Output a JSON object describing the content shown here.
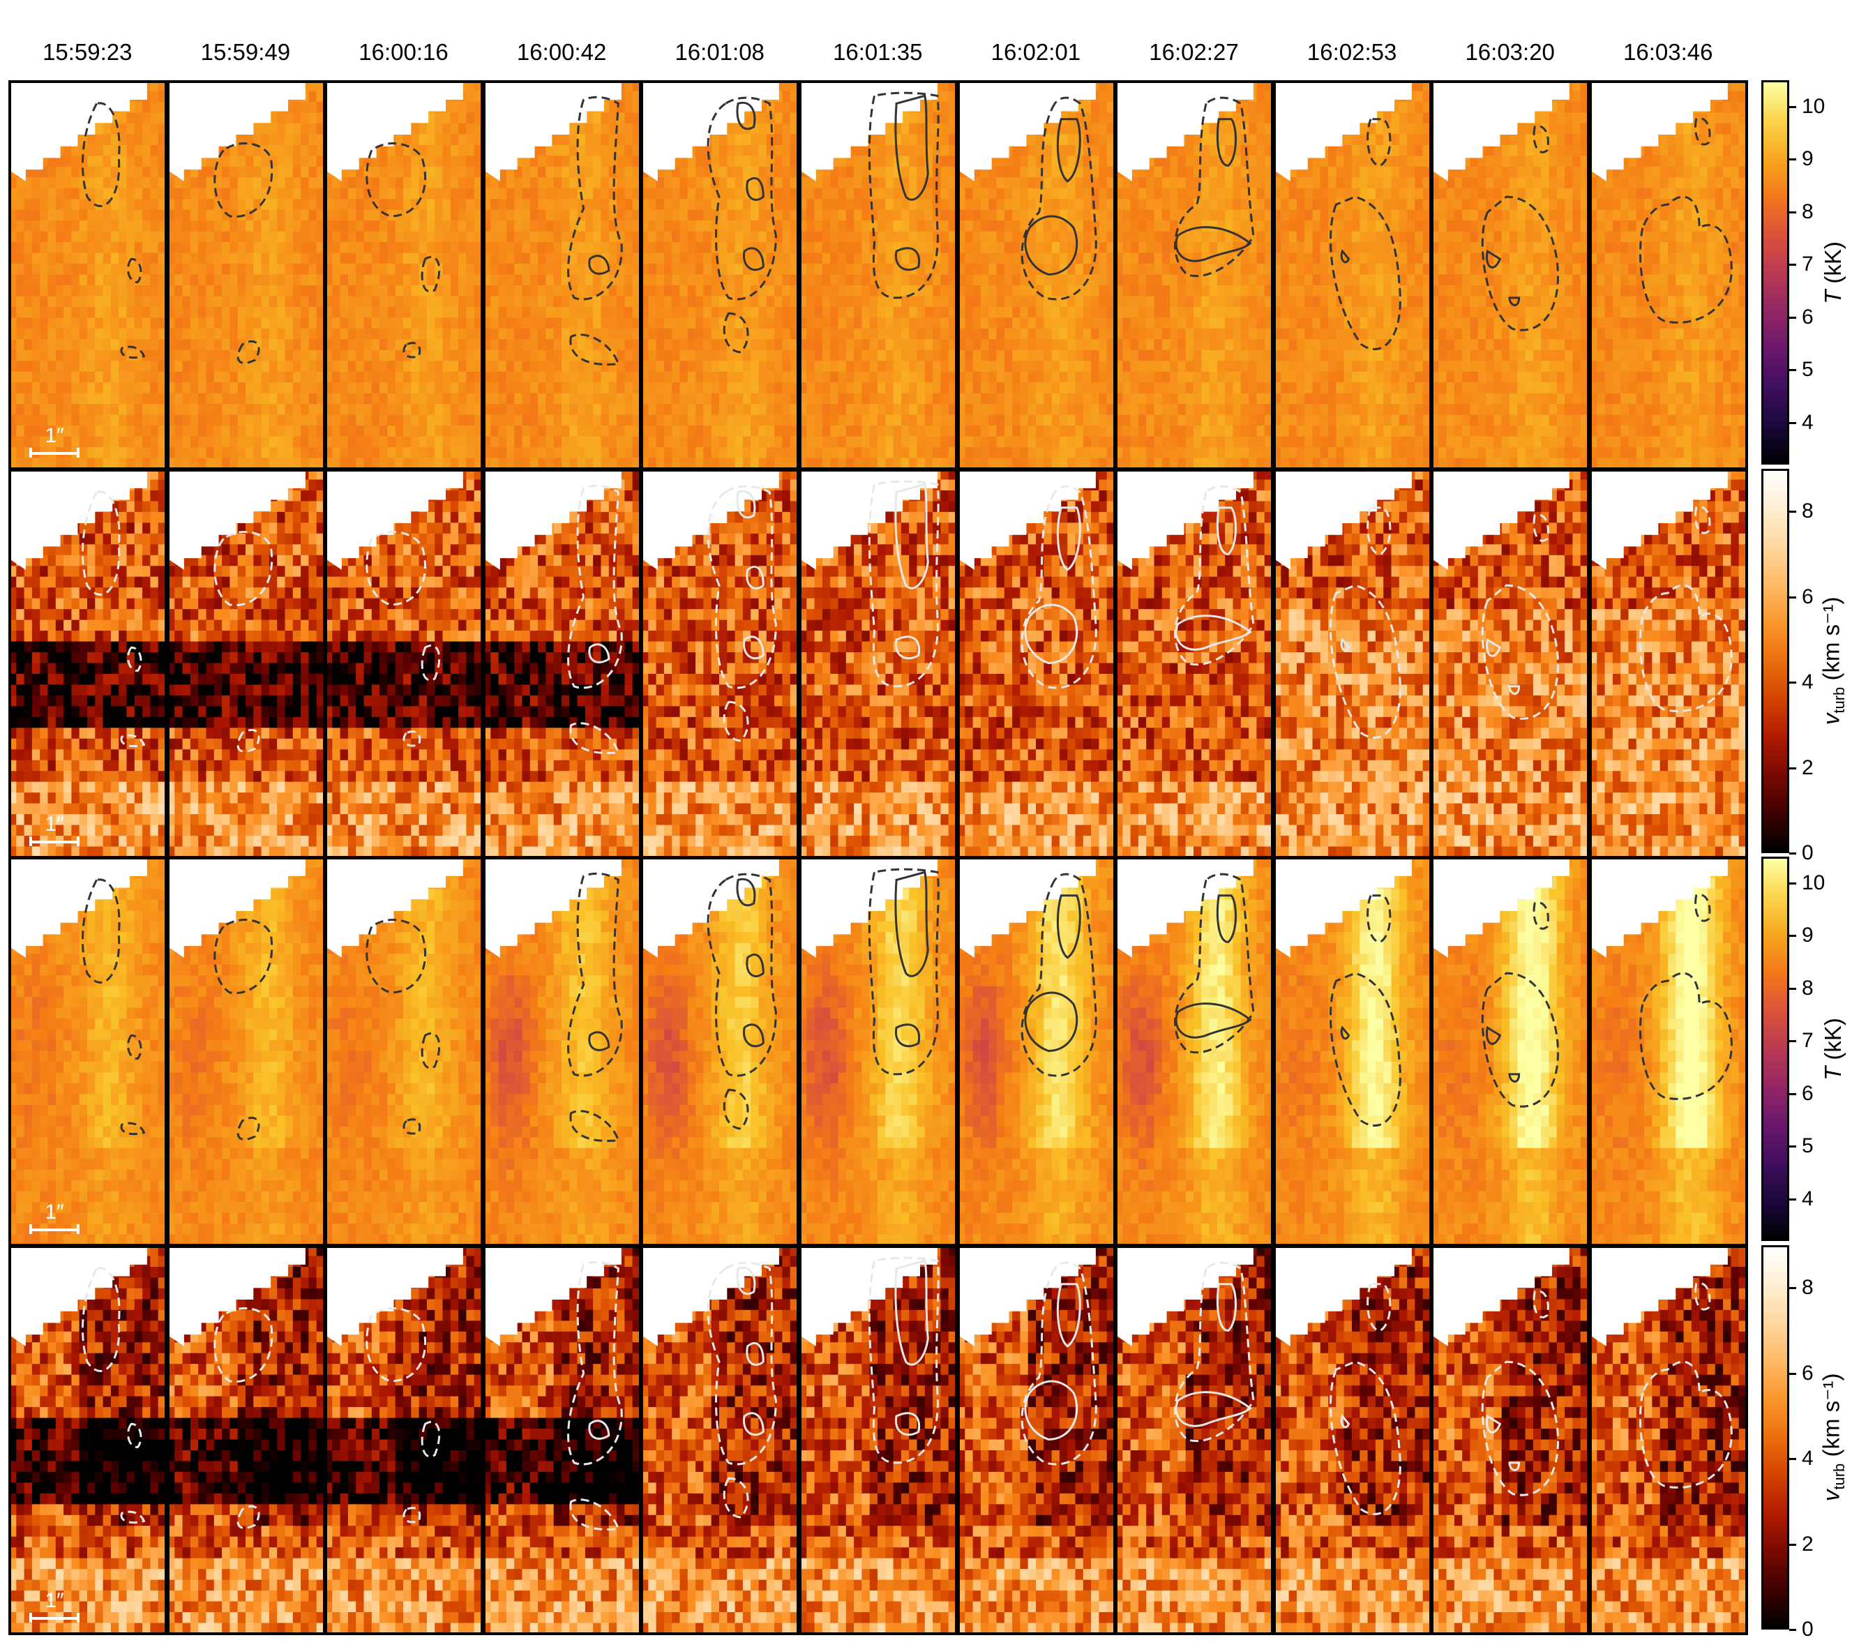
{
  "figure": {
    "times": [
      "15:59:23",
      "15:59:49",
      "16:00:16",
      "16:00:42",
      "16:01:08",
      "16:01:35",
      "16:02:01",
      "16:02:27",
      "16:02:53",
      "16:03:20",
      "16:03:46"
    ],
    "scale_label": "1″",
    "rows": [
      {
        "quantity": "T",
        "colormap": "inferno",
        "contour_color": "#333333",
        "scale_label": "1″"
      },
      {
        "quantity": "vturb",
        "colormap": "gist_heat",
        "contour_color": "#e8e8e8",
        "scale_label": "1″"
      },
      {
        "quantity": "T",
        "colormap": "inferno",
        "contour_color": "#333333",
        "scale_label": "1″"
      },
      {
        "quantity": "vturb",
        "colormap": "gist_heat",
        "contour_color": "#e8e8e8",
        "scale_label": "1″"
      }
    ],
    "colorbars": [
      {
        "label": "T (kK)",
        "label_main": "T",
        "label_unit": " (kK)",
        "range": [
          3.2,
          10.5
        ],
        "ticks": [
          "4",
          "5",
          "6",
          "7",
          "8",
          "9",
          "10"
        ],
        "tick_values": [
          4,
          5,
          6,
          7,
          8,
          9,
          10
        ],
        "colormap": "inferno"
      },
      {
        "label": "vturb (km s⁻¹)",
        "label_main": "v",
        "label_sub": "turb",
        "label_unit": " (km s⁻¹)",
        "range": [
          0,
          9
        ],
        "ticks": [
          "0",
          "2",
          "4",
          "6",
          "8"
        ],
        "tick_values": [
          0,
          2,
          4,
          6,
          8
        ],
        "colormap": "gist_heat"
      },
      {
        "label": "T (kK)",
        "label_main": "T",
        "label_unit": " (kK)",
        "range": [
          3.2,
          10.5
        ],
        "ticks": [
          "4",
          "5",
          "6",
          "7",
          "8",
          "9",
          "10"
        ],
        "tick_values": [
          4,
          5,
          6,
          7,
          8,
          9,
          10
        ],
        "colormap": "inferno"
      },
      {
        "label": "vturb (km s⁻¹)",
        "label_main": "v",
        "label_sub": "turb",
        "label_unit": " (km s⁻¹)",
        "range": [
          0,
          9
        ],
        "ticks": [
          "0",
          "2",
          "4",
          "6",
          "8"
        ],
        "tick_values": [
          0,
          2,
          4,
          6,
          8
        ],
        "colormap": "gist_heat"
      }
    ]
  }
}
